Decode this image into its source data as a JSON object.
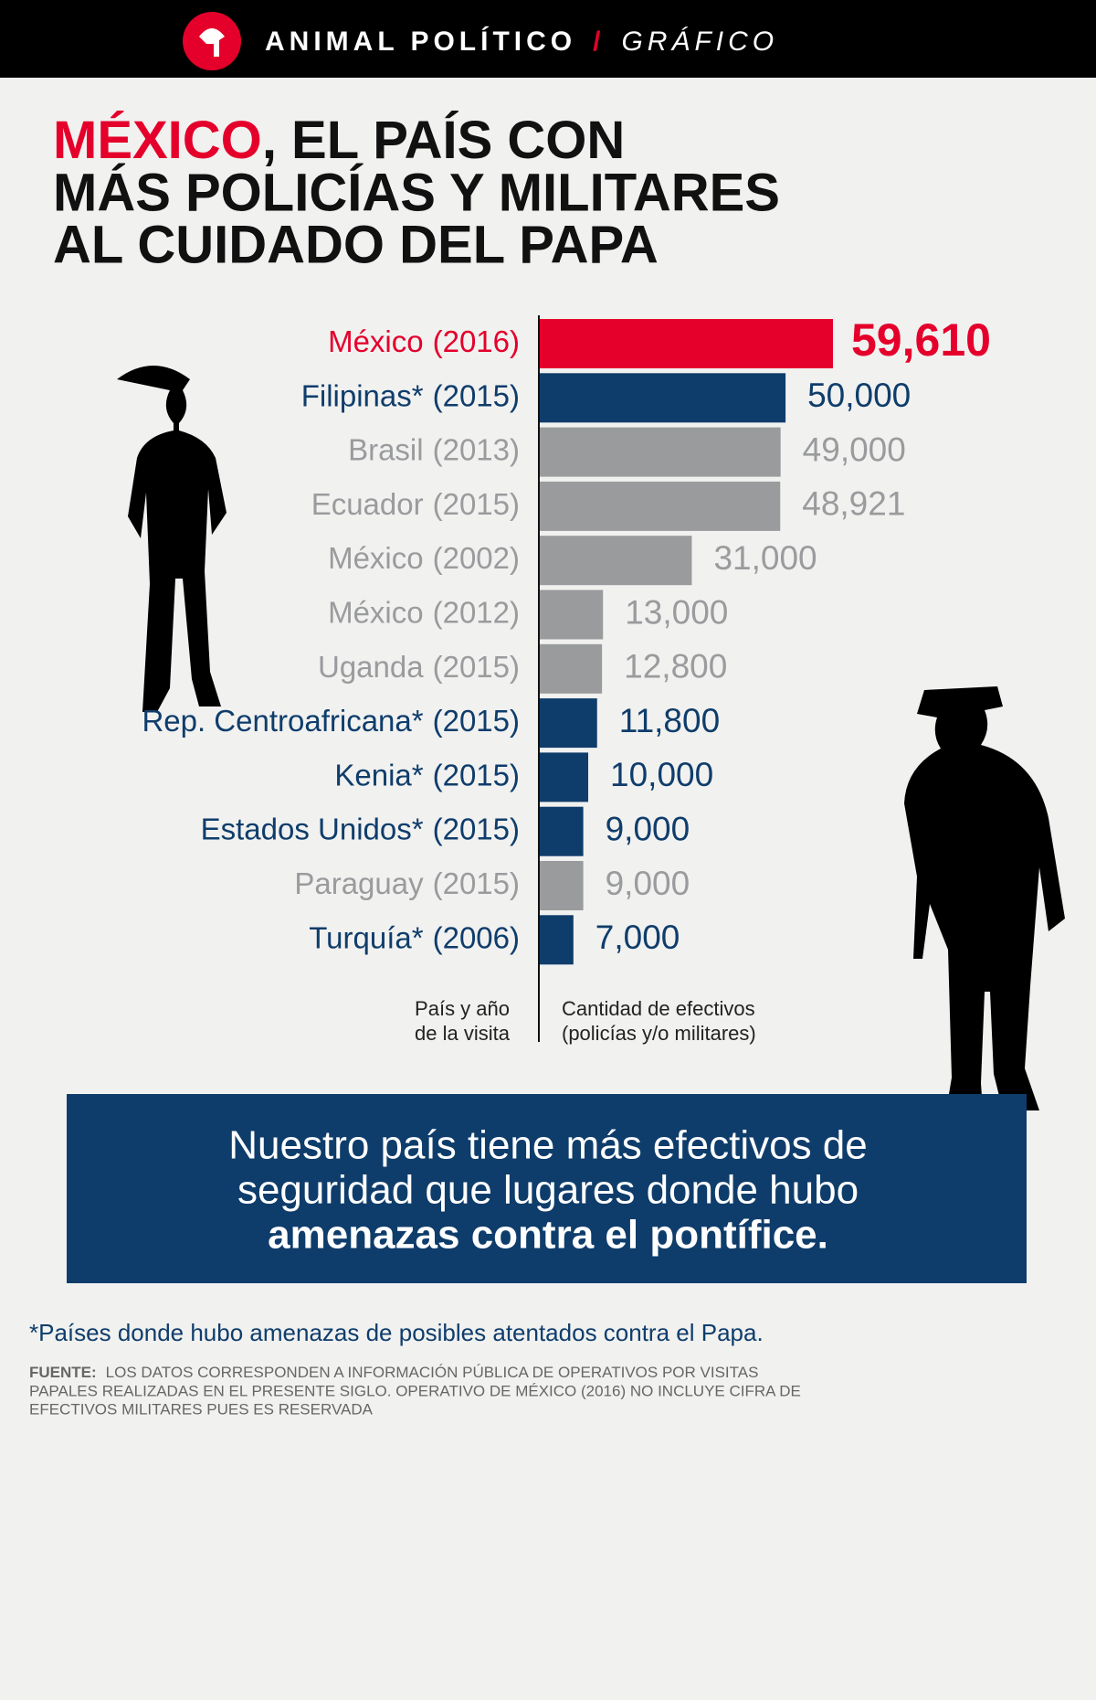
{
  "header": {
    "brand": "ANIMAL POLÍTICO",
    "separator": "/",
    "section": "GRÁFICO"
  },
  "chart_data": {
    "type": "bar",
    "orientation": "horizontal",
    "title_highlight": "MÉXICO",
    "title_lines": [
      ", EL PAÍS CON",
      "MÁS POLICÍAS Y MILITARES",
      "AL CUIDADO DEL PAPA"
    ],
    "categories": [
      "México",
      "Filipinas*",
      "Brasil",
      "Ecuador",
      "México",
      "México",
      "Uganda",
      "Rep. Centroafricana*",
      "Kenia*",
      "Estados Unidos*",
      "Paraguay",
      "Turquía*"
    ],
    "years": [
      "(2016)",
      "(2015)",
      "(2013)",
      "(2015)",
      "(2002)",
      "(2012)",
      "(2015)",
      "(2015)",
      "(2015)",
      "(2015)",
      "(2015)",
      "(2006)"
    ],
    "values": [
      59610,
      50000,
      49000,
      48921,
      31000,
      13000,
      12800,
      11800,
      10000,
      9000,
      9000,
      7000
    ],
    "value_labels": [
      "59,610",
      "50,000",
      "49,000",
      "48,921",
      "31,000",
      "13,000",
      "12,800",
      "11,800",
      "10,000",
      "9,000",
      "9,000",
      "7,000"
    ],
    "colors": [
      "#e4002b",
      "#0f3d6b",
      "#9a9b9d",
      "#9a9b9d",
      "#9a9b9d",
      "#9a9b9d",
      "#9a9b9d",
      "#0f3d6b",
      "#0f3d6b",
      "#0f3d6b",
      "#9a9b9d",
      "#0f3d6b"
    ],
    "category_axis_label": [
      "País y año",
      "de la visita"
    ],
    "value_axis_label": [
      "Cantidad de efectivos",
      "(policías y/o militares)"
    ]
  },
  "callout": {
    "lines": [
      "Nuestro país tiene más efectivos de",
      "seguridad que lugares donde hubo"
    ],
    "bold_line": "amenazas contra el pontífice."
  },
  "footnote": "*Países donde hubo amenazas de posibles atentados contra el Papa.",
  "source": {
    "label": "FUENTE:",
    "lines": [
      "LOS DATOS CORRESPONDEN A INFORMACIÓN PÚBLICA DE OPERATIVOS POR VISITAS",
      "PAPALES REALIZADAS EN EL PRESENTE SIGLO. OPERATIVO DE MÉXICO (2016) NO INCLUYE CIFRA DE",
      "EFECTIVOS MILITARES PUES ES RESERVADA"
    ]
  }
}
